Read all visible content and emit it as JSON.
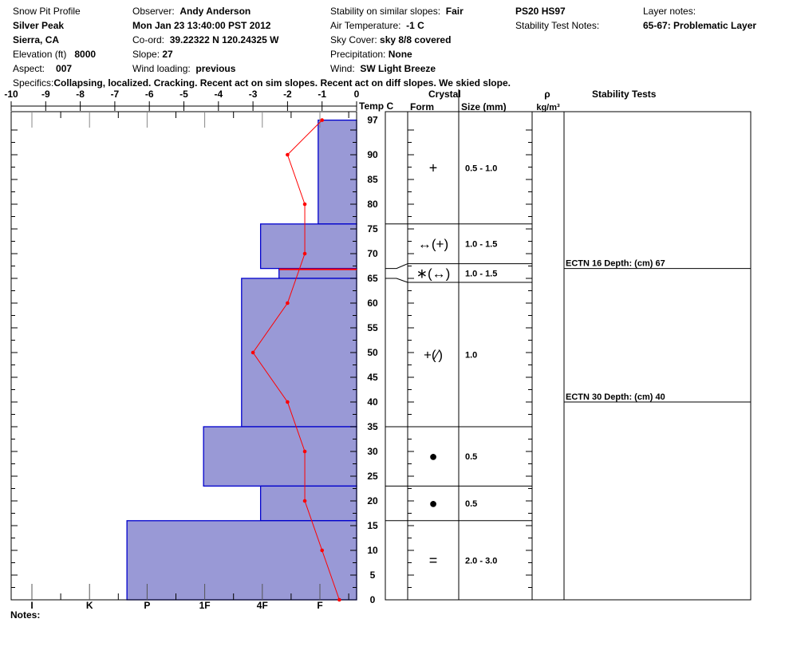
{
  "header": {
    "title": "Snow Pit Profile",
    "location": "Silver Peak",
    "region": "Sierra, CA",
    "elevation_label": "Elevation (ft)",
    "elevation": "8000",
    "aspect_label": "Aspect:",
    "aspect": "007",
    "observer_label": "Observer:",
    "observer": "Andy Anderson",
    "datetime": "Mon Jan 23 13:40:00 PST 2012",
    "coord_label": "Co-ord:",
    "coord": "39.22322 N 120.24325 W",
    "slope_label": "Slope:",
    "slope": "27",
    "wind_loading_label": "Wind loading:",
    "wind_loading": "previous",
    "stability_label": "Stability on similar slopes:",
    "stability": "Fair",
    "air_temp_label": "Air Temperature:",
    "air_temp": "-1 C",
    "sky_label": "Sky Cover:",
    "sky": "sky 8/8 covered",
    "precip_label": "Precipitation:",
    "precip": "None",
    "wind_label": "Wind:",
    "wind": "SW Light Breeze",
    "ps_hs": "PS20 HS97",
    "stability_test_notes_label": "Stability Test Notes:",
    "layer_notes_label": "Layer notes:",
    "layer_notes": "65-67: Problematic Layer",
    "specifics_label": "Specifics:",
    "specifics": "Collapsing, localized. Cracking. Recent act on sim slopes. Recent act on diff slopes. We skied slope."
  },
  "notes_label": "Notes:",
  "colors": {
    "layer_fill": "#9999d6",
    "layer_stroke": "#0000cc",
    "temp_line": "#ff0000"
  },
  "chart_data": {
    "type": "snow-profile",
    "temperature": {
      "xlabel": "Temp C",
      "xlim": [
        -10,
        0
      ],
      "ticks": [
        -10,
        -9,
        -8,
        -7,
        -6,
        -5,
        -4,
        -3,
        -2,
        -1,
        0
      ],
      "points": [
        {
          "depth": 97,
          "temp": -1.0
        },
        {
          "depth": 90,
          "temp": -2.0
        },
        {
          "depth": 80,
          "temp": -1.5
        },
        {
          "depth": 70,
          "temp": -1.5
        },
        {
          "depth": 60,
          "temp": -2.0
        },
        {
          "depth": 50,
          "temp": -3.0
        },
        {
          "depth": 40,
          "temp": -2.0
        },
        {
          "depth": 30,
          "temp": -1.5
        },
        {
          "depth": 20,
          "temp": -1.5
        },
        {
          "depth": 10,
          "temp": -1.0
        },
        {
          "depth": 0,
          "temp": -0.5
        }
      ]
    },
    "depth": {
      "ylim": [
        0,
        97
      ],
      "ticks": [
        97,
        90,
        85,
        80,
        75,
        70,
        65,
        60,
        55,
        50,
        45,
        40,
        35,
        30,
        25,
        20,
        15,
        10,
        5,
        0
      ]
    },
    "hardness": {
      "scale": [
        "I",
        "K",
        "P",
        "1F",
        "4F",
        "F"
      ]
    },
    "problem_layer_depth": 67,
    "table_headers": {
      "crystal": "Crystal",
      "form": "Form",
      "size": "Size (mm)",
      "density": "ρ",
      "density_unit": "kg/m³",
      "stability_tests": "Stability Tests"
    },
    "layers": [
      {
        "top": 97,
        "bottom": 76,
        "hardness": 5.97,
        "form": "+",
        "size": "0.5 - 1.0"
      },
      {
        "top": 76,
        "bottom": 67,
        "hardness": 4.97,
        "form": "↔(+)",
        "size": "1.0 - 1.5"
      },
      {
        "top": 67,
        "bottom": 65,
        "hardness": 5.29,
        "form": "∗(↔)",
        "size": "1.0 - 1.5"
      },
      {
        "top": 65,
        "bottom": 35,
        "hardness": 4.64,
        "form": "+(∕)",
        "size": "1.0"
      },
      {
        "top": 35,
        "bottom": 23,
        "hardness": 3.98,
        "form": "●",
        "size": "0.5"
      },
      {
        "top": 23,
        "bottom": 16,
        "hardness": 4.97,
        "form": "●",
        "size": "0.5"
      },
      {
        "top": 16,
        "bottom": 0,
        "hardness": 2.65,
        "form": "=",
        "size": "2.0 - 3.0"
      }
    ],
    "stability_tests": [
      {
        "depth": 67,
        "label": "ECTN 16   Depth: (cm) 67"
      },
      {
        "depth": 40,
        "label": "ECTN 30   Depth: (cm) 40"
      }
    ]
  }
}
